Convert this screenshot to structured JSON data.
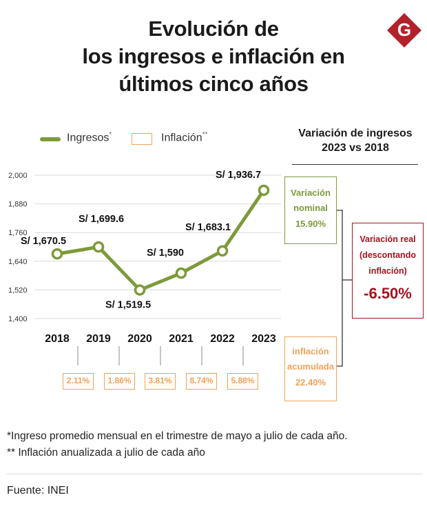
{
  "title": {
    "line1": "Evolución de",
    "line2": "los ingresos e inflación en",
    "line3": "últimos cinco años"
  },
  "logo": {
    "letter": "G",
    "color": "#b3222b"
  },
  "legend": {
    "ingresos": "Ingresos",
    "ingresos_mark": "*",
    "inflacion": "Inflación",
    "inflacion_mark": "**"
  },
  "side": {
    "title_line1": "Variación de ingresos",
    "title_line2": "2023 vs 2018",
    "nominal": {
      "label_line1": "Variación",
      "label_line2": "nominal",
      "value": "15.90%"
    },
    "real": {
      "label_line1": "Variación real",
      "label_line2": "(descontando",
      "label_line3": "inflación)",
      "value": "-6.50%"
    },
    "acumulada": {
      "label_line1": "inflación",
      "label_line2": "acumulada",
      "value": "22.40%"
    }
  },
  "inflation_by_year": [
    "2.11%",
    "1.86%",
    "3.81%",
    "8.74%",
    "5.88%"
  ],
  "footnotes": {
    "note1": "*Ingreso promedio mensual en el trimestre de mayo a julio de cada año.",
    "note2": "** Inflación anualizada a julio de cada año"
  },
  "source": "Fuente: INEI",
  "colors": {
    "line": "#7d9a3a",
    "inflation": "#f0a25a",
    "real": "#a4121d",
    "grid": "#d9d9d9"
  },
  "chart_data": {
    "type": "line",
    "title": "Evolución de los ingresos e inflación en últimos cinco años",
    "x": [
      "2018",
      "2019",
      "2020",
      "2021",
      "2022",
      "2023"
    ],
    "series": [
      {
        "name": "Ingresos",
        "values": [
          1670.5,
          1699.6,
          1519.5,
          1590,
          1683.1,
          1936.7
        ]
      }
    ],
    "data_labels": [
      "S/ 1,670.5",
      "S/ 1,699.6",
      "S/ 1,519.5",
      "S/ 1,590",
      "S/ 1,683.1",
      "S/ 1,936.7"
    ],
    "yticks": [
      1400,
      1520,
      1640,
      1760,
      1880,
      2000
    ],
    "ytick_labels": [
      "1,400",
      "1,520",
      "1,640",
      "1,760",
      "1,880",
      "2,000"
    ],
    "ylim": [
      1400,
      2000
    ],
    "xlabel": "",
    "ylabel": "",
    "grid": true,
    "legend": "top-left"
  }
}
